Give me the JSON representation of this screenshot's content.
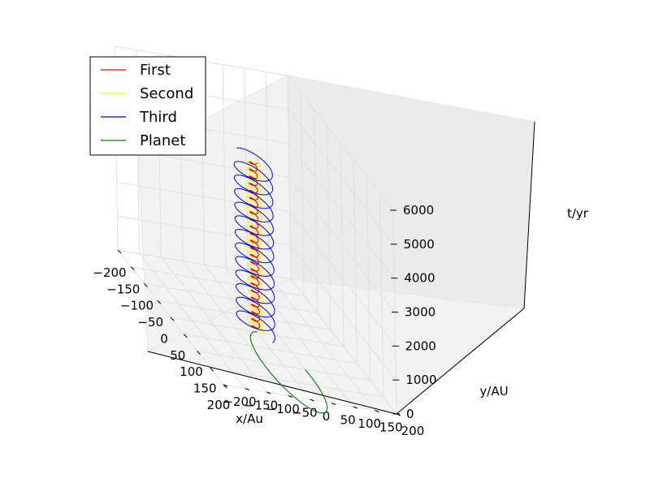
{
  "chart_data": {
    "type": "line",
    "projection": "3d",
    "title": "",
    "xlabel": "x/Au",
    "ylabel": "y/AU",
    "zlabel": "t/yr",
    "xlim": [
      -200,
      200
    ],
    "ylim": [
      -200,
      200
    ],
    "zlim": [
      0,
      6000
    ],
    "x_ticks": [
      "−200",
      "−150",
      "−100",
      "−50",
      "0",
      "50",
      "100",
      "150",
      "200"
    ],
    "y_ticks": [
      "−200",
      "−150",
      "−100",
      "−50",
      "0",
      "50",
      "100",
      "150",
      "200"
    ],
    "z_ticks": [
      "0",
      "1000",
      "2000",
      "3000",
      "4000",
      "5000",
      "6000"
    ],
    "grid": true,
    "legend_position": "upper-left",
    "series": [
      {
        "name": "First",
        "color": "#ff0000",
        "radius_au": 8,
        "period_yr": 210,
        "t_start": 0,
        "t_end": 5000
      },
      {
        "name": "Second",
        "color": "#ffff00",
        "radius_au": 14,
        "period_yr": 190,
        "t_start": 0,
        "t_end": 5000
      },
      {
        "name": "Third",
        "color": "#0000ff",
        "radius_au": 38,
        "period_yr": 400,
        "t_start": 0,
        "t_end": 5000
      },
      {
        "name": "Planet",
        "color": "#008000",
        "orbit_x_au": [
          0,
          240
        ],
        "orbit_y_au": [
          -50,
          50
        ],
        "t": 0
      }
    ]
  }
}
